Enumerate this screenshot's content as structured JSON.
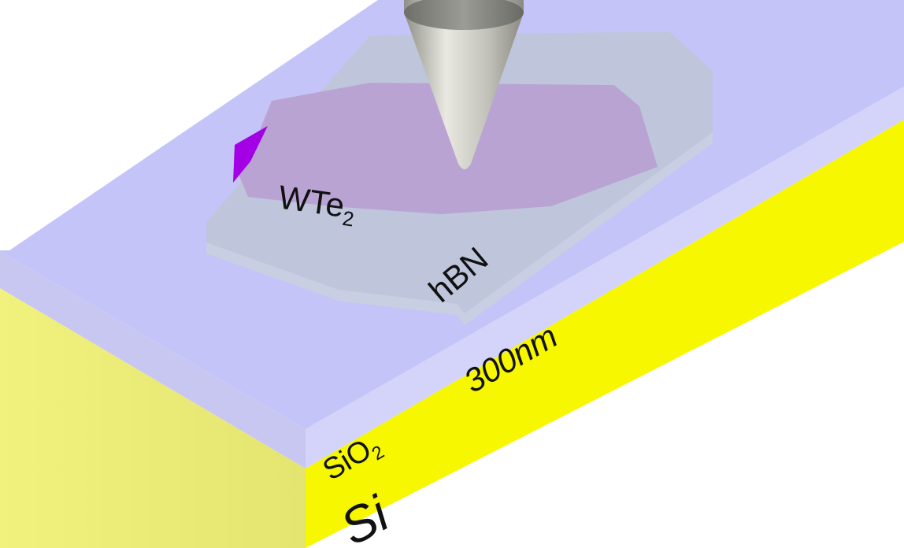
{
  "labels": {
    "wte2_main": "WTe",
    "wte2_sub": "2",
    "hbn": "hBN",
    "thickness": "300nm",
    "sio2_main": "SiO",
    "sio2_sub": "2",
    "si": "Si"
  },
  "colors": {
    "sio2_top": "#c4c4f8",
    "sio2_side": "#d2d2fa",
    "sio2_front": "#c7c7f2",
    "si_side": "#f7f700",
    "si_front": "#eded79",
    "hbn": "#bfc6dc",
    "hbn_edge": "#c9d0e2",
    "wte2": "#b9a3d3",
    "wte2_edge_accent": "#a300e6",
    "tip": "#bdbdb5"
  }
}
